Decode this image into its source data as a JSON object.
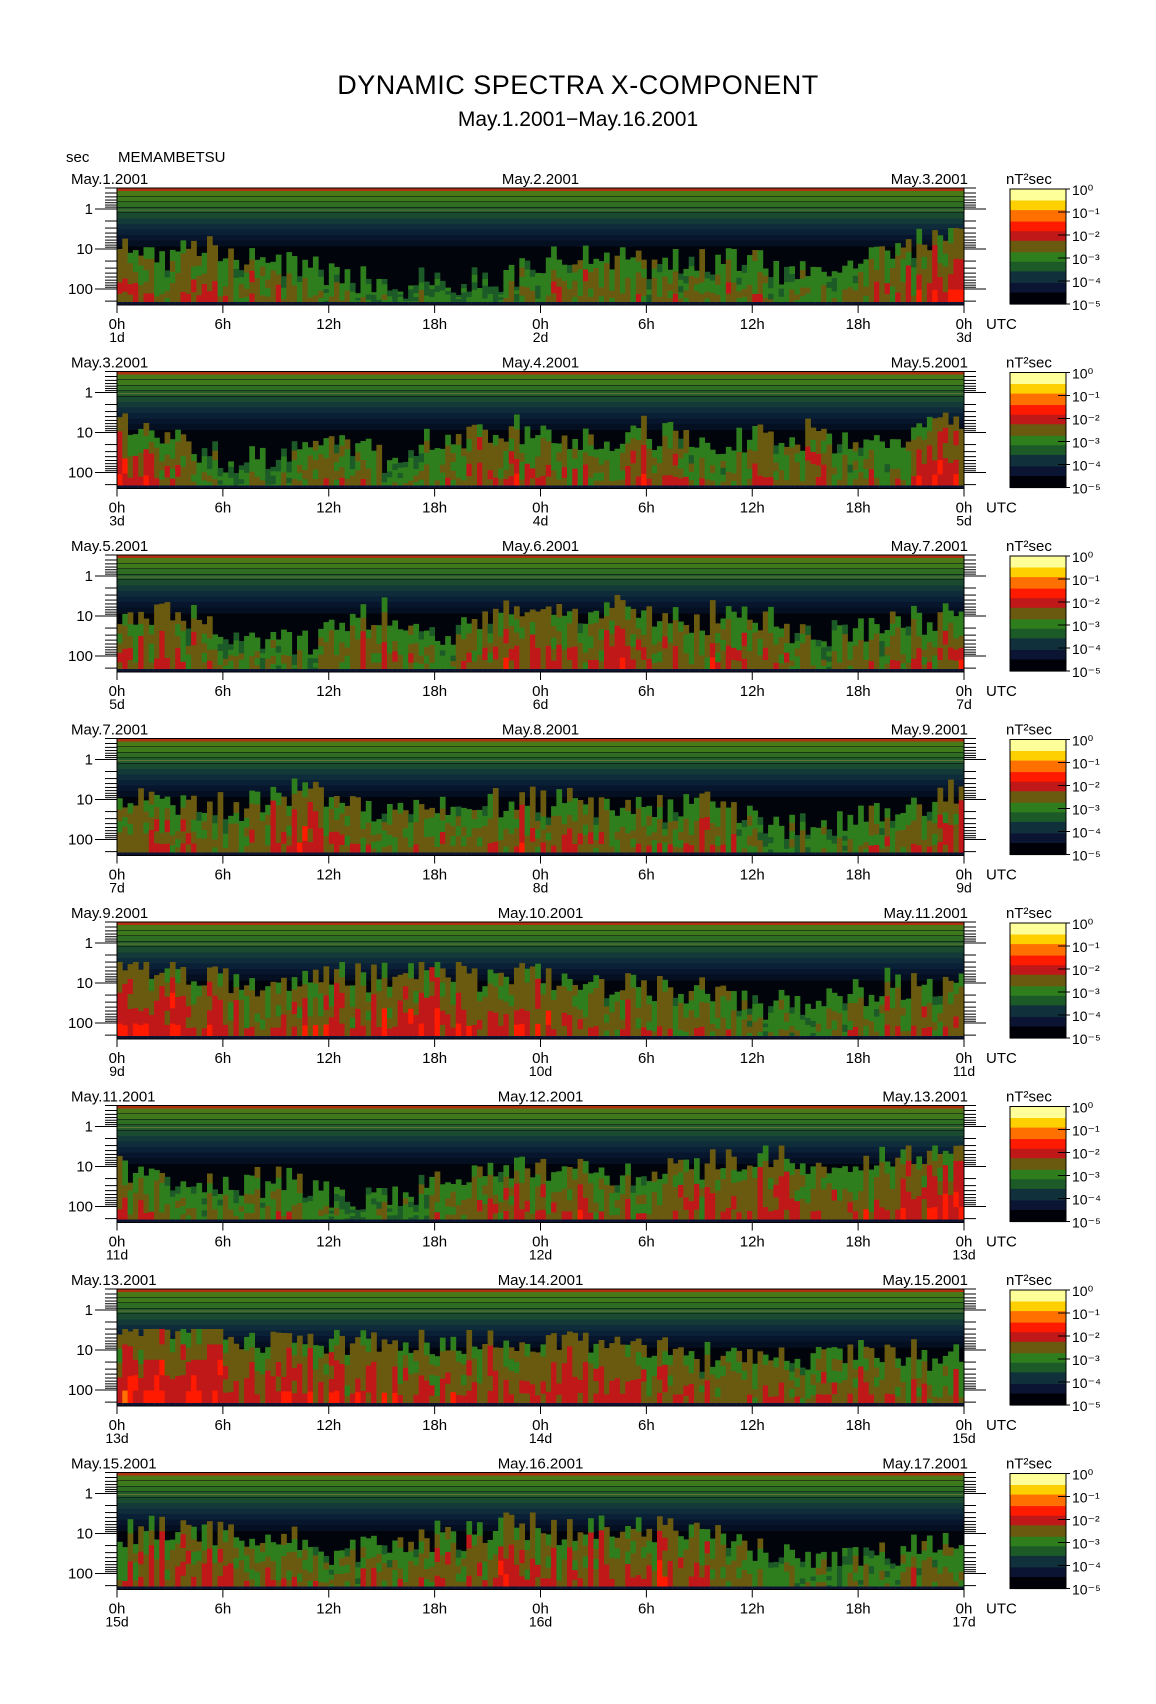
{
  "header": {
    "title": "DYNAMIC SPECTRA X-COMPONENT",
    "subtitle": "May.1.2001−May.16.2001",
    "unit_label": "sec",
    "station": "MEMAMBETSU"
  },
  "chart_data": {
    "type": "heatmap",
    "title": "DYNAMIC SPECTRA X-COMPONENT",
    "subtitle": "May.1.2001−May.16.2001",
    "ylabel": "sec",
    "y_axis": {
      "scale": "log",
      "reversed": true,
      "range": [
        0.3,
        250
      ],
      "tick_values": [
        1,
        10,
        100
      ],
      "tick_labels": [
        "1",
        "10",
        "100"
      ]
    },
    "x_axis": {
      "unit": "UTC",
      "tick_labels": [
        "0h",
        "6h",
        "12h",
        "18h",
        "0h",
        "6h",
        "12h",
        "18h",
        "0h"
      ]
    },
    "colorbar": {
      "label": "nT²sec",
      "scale": "log",
      "tick_labels": [
        "10⁰",
        "10⁻¹",
        "10⁻²",
        "10⁻³",
        "10⁻⁴",
        "10⁻⁵"
      ],
      "colors": [
        "#ffff9a",
        "#ffd000",
        "#ff7000",
        "#ff1a00",
        "#c01818",
        "#6a5a10",
        "#2e7e1e",
        "#1c5a28",
        "#10303c",
        "#0c1434",
        "#000008"
      ]
    },
    "panels": [
      {
        "start_date": "May.1.2001",
        "mid_date": "May.2.2001",
        "end_date": "May.3.2001",
        "day_labels": [
          "1d",
          "2d",
          "3d"
        ],
        "activity": [
          2.1,
          2.0,
          1.9,
          2.2,
          2.0,
          1.8,
          1.6,
          1.4,
          1.2,
          1.0,
          0.8,
          0.7,
          0.6,
          0.6,
          0.8,
          1.1,
          1.5,
          1.8,
          1.7,
          1.5,
          1.4,
          1.6,
          1.9,
          1.8,
          1.5,
          1.2,
          1.0,
          1.3,
          1.6,
          2.0,
          2.3,
          2.6,
          2.8
        ]
      },
      {
        "start_date": "May.3.2001",
        "mid_date": "May.4.2001",
        "end_date": "May.5.2001",
        "day_labels": [
          "3d",
          "4d",
          "5d"
        ],
        "activity": [
          2.6,
          2.5,
          2.0,
          1.4,
          1.0,
          0.9,
          1.0,
          1.3,
          1.8,
          1.6,
          1.2,
          1.3,
          1.7,
          2.0,
          2.2,
          2.3,
          2.1,
          1.9,
          1.8,
          2.0,
          2.2,
          2.0,
          1.7,
          1.6,
          1.8,
          2.0,
          2.1,
          1.8,
          1.4,
          1.5,
          2.0,
          2.6,
          2.7
        ]
      },
      {
        "start_date": "May.5.2001",
        "mid_date": "May.6.2001",
        "end_date": "May.7.2001",
        "day_labels": [
          "5d",
          "6d",
          "7d"
        ],
        "activity": [
          2.2,
          2.3,
          2.1,
          1.8,
          1.3,
          1.0,
          0.9,
          1.0,
          1.4,
          1.9,
          2.3,
          1.5,
          1.0,
          1.4,
          1.9,
          2.2,
          2.4,
          2.3,
          2.2,
          2.6,
          2.1,
          1.9,
          1.8,
          2.5,
          2.2,
          1.8,
          1.6,
          1.4,
          1.5,
          1.7,
          1.9,
          2.0,
          2.1
        ]
      },
      {
        "start_date": "May.7.2001",
        "mid_date": "May.8.2001",
        "end_date": "May.9.2001",
        "day_labels": [
          "7d",
          "8d",
          "9d"
        ],
        "activity": [
          2.3,
          2.2,
          2.0,
          1.8,
          1.7,
          1.9,
          2.4,
          2.6,
          2.3,
          2.0,
          1.7,
          1.8,
          1.9,
          2.0,
          2.1,
          2.1,
          2.2,
          2.1,
          1.9,
          1.8,
          1.6,
          1.9,
          2.2,
          1.7,
          1.3,
          1.0,
          1.0,
          1.2,
          1.4,
          1.6,
          1.9,
          2.3,
          2.6
        ]
      },
      {
        "start_date": "May.9.2001",
        "mid_date": "May.10.2001",
        "end_date": "May.11.2001",
        "day_labels": [
          "9d",
          "10d",
          "11d"
        ],
        "activity": [
          2.9,
          3.0,
          2.9,
          2.7,
          2.4,
          2.2,
          2.1,
          2.3,
          2.6,
          2.4,
          2.5,
          2.6,
          2.7,
          2.5,
          2.3,
          2.7,
          2.6,
          2.4,
          2.3,
          2.2,
          2.1,
          2.0,
          1.8,
          1.6,
          1.4,
          1.3,
          1.3,
          1.5,
          1.8,
          2.0,
          2.1,
          2.0,
          1.9
        ]
      },
      {
        "start_date": "May.11.2001",
        "mid_date": "May.12.2001",
        "end_date": "May.13.2001",
        "day_labels": [
          "11d",
          "12d",
          "13d"
        ],
        "activity": [
          2.0,
          1.8,
          1.5,
          1.2,
          1.0,
          1.4,
          1.6,
          1.1,
          0.8,
          0.7,
          0.8,
          1.0,
          1.4,
          1.9,
          2.1,
          2.0,
          1.9,
          2.0,
          2.1,
          2.0,
          1.9,
          1.9,
          2.1,
          2.3,
          2.4,
          2.7,
          2.4,
          2.2,
          2.3,
          2.5,
          3.0,
          3.1,
          3.1
        ]
      },
      {
        "start_date": "May.13.2001",
        "mid_date": "May.14.2001",
        "end_date": "May.15.2001",
        "day_labels": [
          "13d",
          "14d",
          "15d"
        ],
        "activity": [
          3.3,
          3.4,
          3.3,
          3.1,
          2.9,
          2.7,
          2.6,
          2.5,
          2.6,
          2.5,
          2.4,
          2.4,
          2.5,
          2.5,
          2.6,
          2.5,
          2.5,
          2.6,
          2.4,
          2.3,
          2.2,
          2.1,
          2.0,
          2.0,
          1.9,
          1.9,
          1.8,
          1.9,
          2.0,
          2.0,
          1.9,
          1.9,
          1.8
        ]
      },
      {
        "start_date": "May.15.2001",
        "mid_date": "May.16.2001",
        "end_date": "May.17.2001",
        "day_labels": [
          "15d",
          "16d",
          "17d"
        ],
        "activity": [
          2.3,
          2.2,
          2.3,
          2.4,
          2.2,
          2.0,
          1.9,
          1.7,
          1.4,
          1.4,
          1.5,
          1.6,
          1.9,
          2.2,
          2.4,
          2.5,
          2.5,
          2.4,
          2.5,
          2.6,
          2.5,
          2.4,
          2.3,
          2.0,
          1.6,
          1.3,
          1.1,
          1.0,
          1.1,
          1.2,
          1.5,
          1.8,
          1.9
        ]
      }
    ]
  }
}
